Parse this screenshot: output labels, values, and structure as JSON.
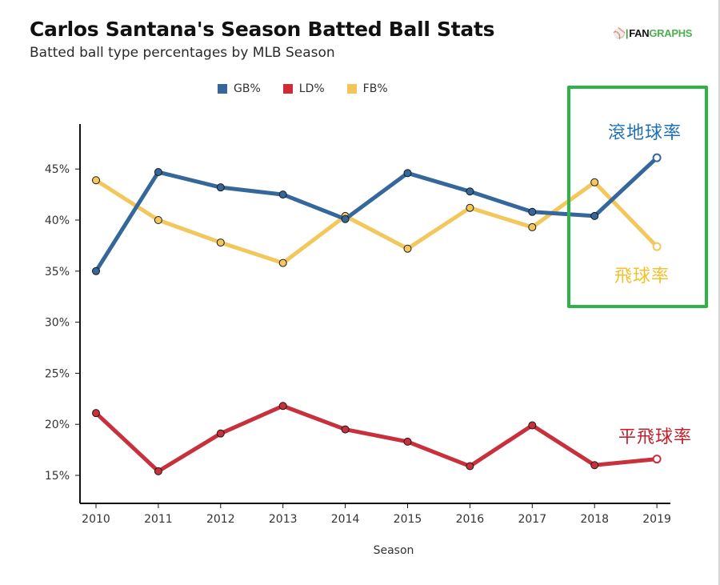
{
  "header": {
    "title": "Carlos Santana's Season Batted Ball Stats",
    "subtitle": "Batted ball type percentages by MLB Season",
    "logo_prefix": "FAN",
    "logo_suffix": "GRAPHS"
  },
  "annotations": {
    "gb": {
      "text": "滾地球率",
      "color": "#1f6fb2"
    },
    "fb": {
      "text": "飛球率",
      "color": "#f2c12e"
    },
    "ld": {
      "text": "平飛球率",
      "color": "#c0212f"
    },
    "highlight_color": "#2db34a"
  },
  "chart_data": {
    "type": "line",
    "title": "Carlos Santana's Season Batted Ball Stats",
    "subtitle": "Batted ball type percentages by MLB Season",
    "xlabel": "Season",
    "ylabel": "",
    "x": [
      "2010",
      "2011",
      "2012",
      "2013",
      "2014",
      "2015",
      "2016",
      "2017",
      "2018",
      "2019"
    ],
    "ylim": [
      12,
      49
    ],
    "yticks": [
      15,
      20,
      25,
      30,
      35,
      40,
      45
    ],
    "ytick_labels": [
      "15%",
      "20%",
      "25%",
      "30%",
      "35%",
      "40%",
      "45%"
    ],
    "grid": false,
    "legend_position": "top-center",
    "series": [
      {
        "name": "GB%",
        "color": "#36679b",
        "values": [
          35.0,
          44.7,
          43.2,
          42.5,
          40.1,
          44.6,
          42.8,
          40.8,
          40.4,
          46.1
        ]
      },
      {
        "name": "LD%",
        "color": "#c8303c",
        "values": [
          21.1,
          15.4,
          19.1,
          21.8,
          19.5,
          18.3,
          15.9,
          19.9,
          16.0,
          16.6
        ]
      },
      {
        "name": "FB%",
        "color": "#f2c75c",
        "values": [
          43.9,
          40.0,
          37.8,
          35.8,
          40.4,
          37.2,
          41.2,
          39.3,
          43.7,
          37.4
        ]
      }
    ]
  }
}
